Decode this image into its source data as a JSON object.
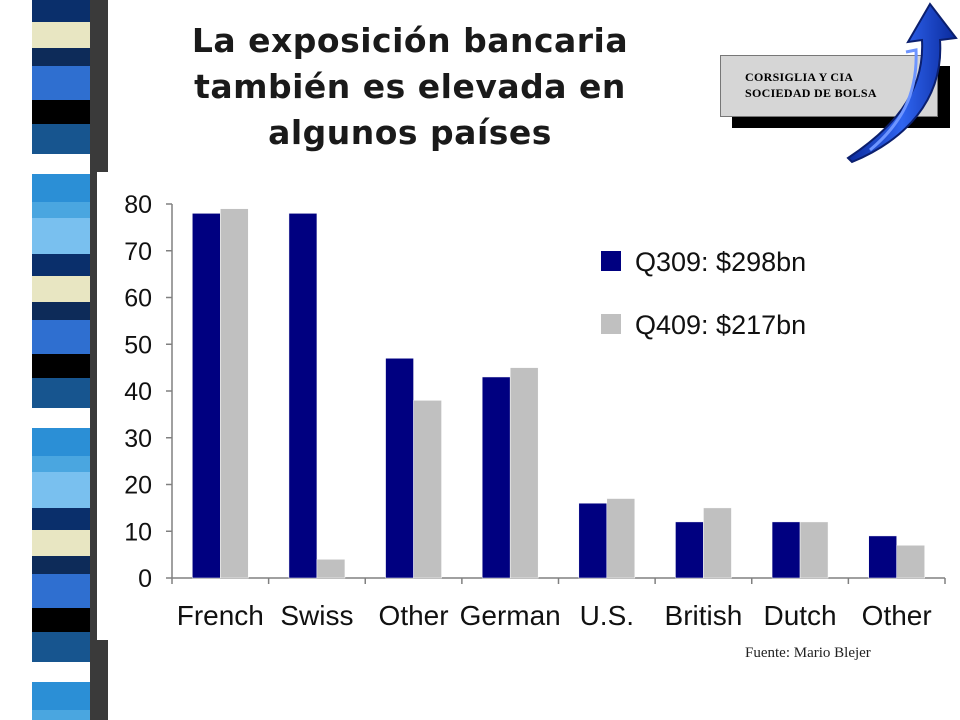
{
  "slide": {
    "title_lines": [
      "La exposición bancaria",
      "también es elevada en",
      "algunos países"
    ],
    "source_note": "Fuente: Mario Blejer"
  },
  "logo": {
    "line1": "CORSIGLIA Y CIA",
    "line2": "SOCIEDAD DE BOLSA",
    "arrow_icon": "blue-upward-arrow-icon"
  },
  "colors": {
    "series1": "#000080",
    "series2": "#c0c0c0",
    "axis": "#808080"
  },
  "chart_data": {
    "type": "bar",
    "categories": [
      "French",
      "Swiss",
      "Other",
      "German",
      "U.S.",
      "British",
      "Dutch",
      "Other"
    ],
    "series": [
      {
        "name": "Q309: $298bn",
        "values": [
          78,
          78,
          47,
          43,
          16,
          12,
          12,
          9
        ]
      },
      {
        "name": "Q409: $217bn",
        "values": [
          79,
          4,
          38,
          45,
          17,
          15,
          12,
          7
        ]
      }
    ],
    "ylim": [
      0,
      80
    ],
    "yticks": [
      0,
      10,
      20,
      30,
      40,
      50,
      60,
      70,
      80
    ],
    "legend": "top-right",
    "grid": false
  }
}
